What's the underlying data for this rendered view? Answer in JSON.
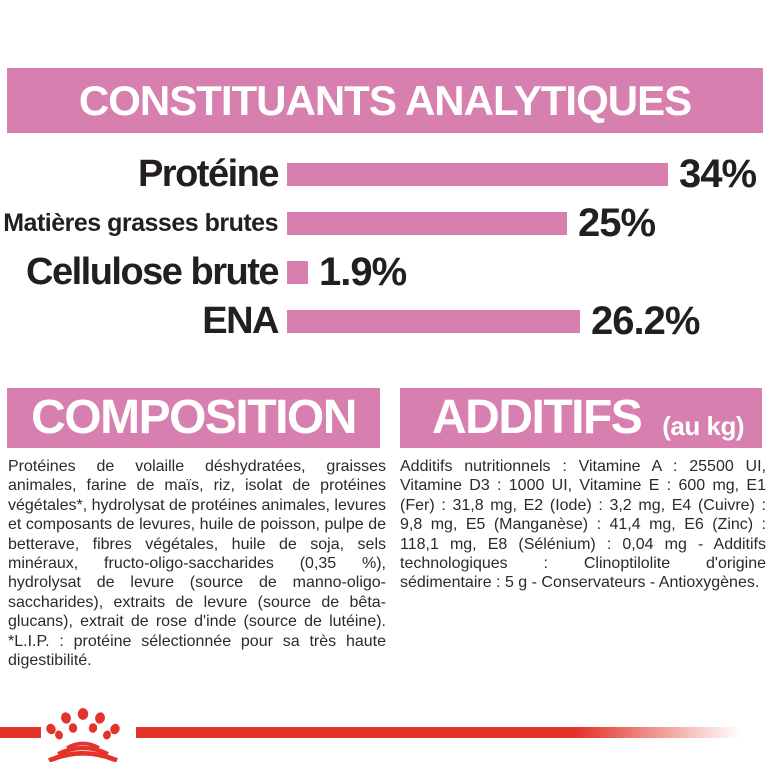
{
  "colors": {
    "pink": "#d77fae",
    "red": "#e4332a",
    "label_black": "#231f20",
    "body_text": "#2b2a29"
  },
  "analytical_constituents": {
    "title": "CONSTITUANTS ANALYTIQUES",
    "chart_data": {
      "type": "bar",
      "orientation": "horizontal",
      "categories": [
        "Protéine",
        "Matières grasses brutes",
        "Cellulose brute",
        "ENA"
      ],
      "values": [
        34,
        25,
        1.9,
        26.2
      ],
      "value_labels": [
        "34%",
        "25%",
        "1.9%",
        "26.2%"
      ],
      "unit": "%",
      "xlim": [
        0,
        35
      ],
      "bar_color": "#d77fae",
      "grid": false,
      "legend": false
    }
  },
  "composition": {
    "title": "COMPOSITION",
    "body": "Protéines de volaille déshydratées, graisses animales, farine de maïs, riz, isolat de protéines végétales*, hydrolysat de protéines animales, levures et composants de levures, huile de poisson, pulpe de betterave, fibres végétales, huile de soja, sels minéraux, fructo-oligo-saccharides (0,35 %), hydrolysat de levure (source de manno-oligo-saccharides), extraits de levure (source de bêta-glucans), extrait de rose d'inde (source de lutéine). *L.I.P. : protéine sélectionnée pour sa très haute digestibilité."
  },
  "additifs": {
    "title": "ADDITIFS",
    "unit_label": "(au kg)",
    "body": "Additifs nutritionnels : Vitamine A : 25500 UI, Vitamine D3 : 1000 UI, Vitamine E : 600 mg, E1 (Fer) : 31,8 mg, E2 (Iode) : 3,2 mg, E4 (Cuivre) : 9,8 mg, E5 (Manganèse) : 41,4 mg, E6 (Zinc) : 118,1 mg, E8 (Sélénium) : 0,04 mg - Additifs technologiques : Clinoptilolite d'origine sédimentaire : 5 g - Conservateurs - Antioxygènes."
  },
  "footer": {
    "logo_icon": "royal-canin-crown-icon"
  }
}
